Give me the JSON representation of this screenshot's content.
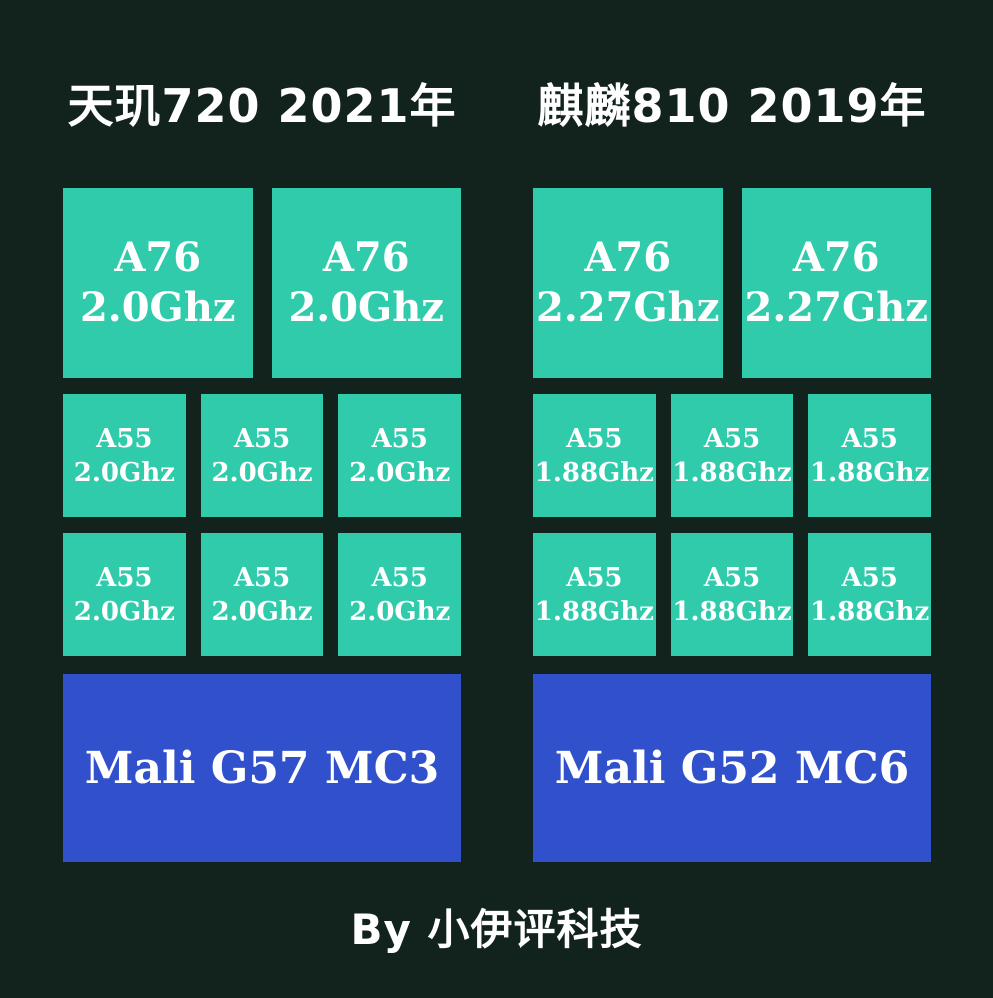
{
  "colors": {
    "background": "#12231e",
    "core": "#30cbab",
    "gpu": "#3150cc",
    "text": "#ffffff"
  },
  "chips": [
    {
      "title": "天玑720 2021年",
      "big_cores": [
        {
          "name": "A76",
          "freq": "2.0Ghz"
        },
        {
          "name": "A76",
          "freq": "2.0Ghz"
        }
      ],
      "small_cores": [
        {
          "name": "A55",
          "freq": "2.0Ghz"
        },
        {
          "name": "A55",
          "freq": "2.0Ghz"
        },
        {
          "name": "A55",
          "freq": "2.0Ghz"
        },
        {
          "name": "A55",
          "freq": "2.0Ghz"
        },
        {
          "name": "A55",
          "freq": "2.0Ghz"
        },
        {
          "name": "A55",
          "freq": "2.0Ghz"
        }
      ],
      "gpu_label": "Mali G57 MC3"
    },
    {
      "title": "麒麟810 2019年",
      "big_cores": [
        {
          "name": "A76",
          "freq": "2.27Ghz"
        },
        {
          "name": "A76",
          "freq": "2.27Ghz"
        }
      ],
      "small_cores": [
        {
          "name": "A55",
          "freq": "1.88Ghz"
        },
        {
          "name": "A55",
          "freq": "1.88Ghz"
        },
        {
          "name": "A55",
          "freq": "1.88Ghz"
        },
        {
          "name": "A55",
          "freq": "1.88Ghz"
        },
        {
          "name": "A55",
          "freq": "1.88Ghz"
        },
        {
          "name": "A55",
          "freq": "1.88Ghz"
        }
      ],
      "gpu_label": "Mali G52 MC6"
    }
  ],
  "footer": {
    "credit": "By 小伊评科技"
  }
}
